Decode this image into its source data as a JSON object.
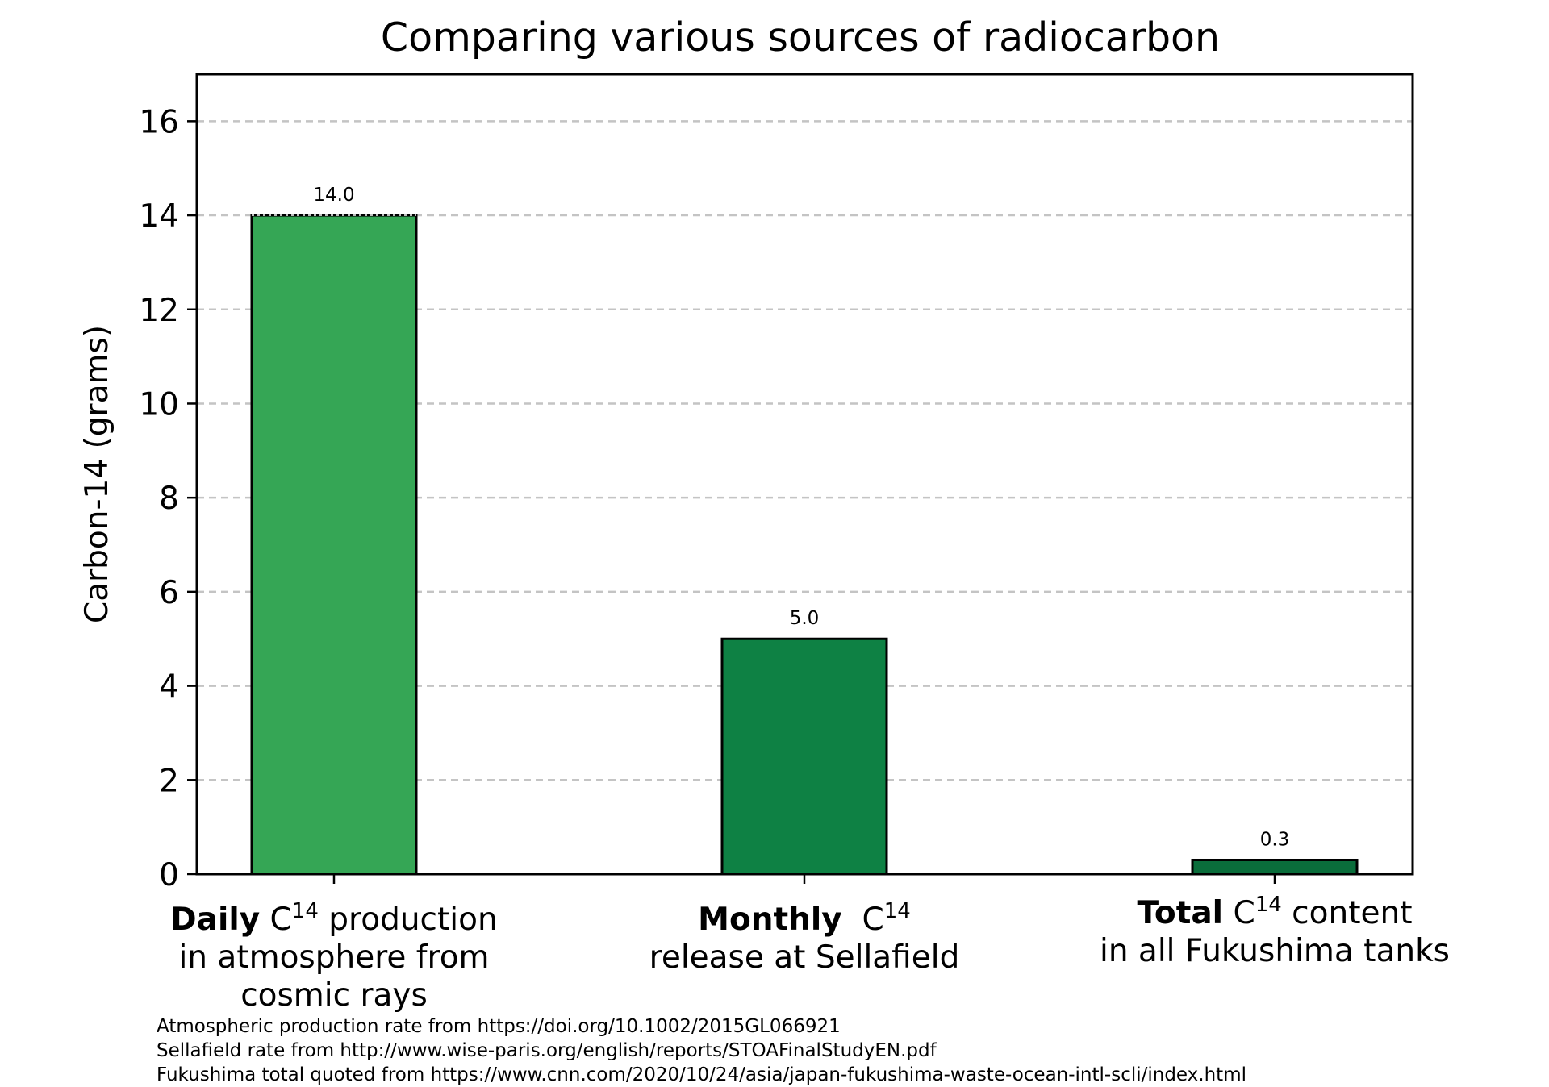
{
  "chart_data": {
    "type": "bar",
    "title": "Comparing various sources of radiocarbon",
    "ylabel": "Carbon-14 (grams)",
    "xlabel": "",
    "ylim": [
      0,
      17
    ],
    "yticks": [
      0,
      2,
      4,
      6,
      8,
      10,
      12,
      14,
      16
    ],
    "grid": "horizontal dashed",
    "categories": [
      {
        "bold": "Daily",
        "pre": " C",
        "sup": "14",
        "post": " production",
        "lines": [
          "in atmosphere from",
          "cosmic rays"
        ]
      },
      {
        "bold": "Monthly",
        "pre": "  C",
        "sup": "14",
        "post": "",
        "lines": [
          "release at Sellafield"
        ]
      },
      {
        "bold": "Total",
        "pre": " C",
        "sup": "14",
        "post": " content",
        "lines": [
          "in all Fukushima tanks"
        ]
      }
    ],
    "values": [
      14.0,
      5.0,
      0.3
    ],
    "value_labels": [
      "14.0",
      "5.0",
      "0.3"
    ],
    "colors": [
      "#35a655",
      "#0e8144",
      "#0a6d3b"
    ]
  },
  "sources": [
    "Atmospheric production rate from https://doi.org/10.1002/2015GL066921",
    "Sellafield rate from http://www.wise-paris.org/english/reports/STOAFinalStudyEN.pdf",
    "Fukushima total quoted from https://www.cnn.com/2020/10/24/asia/japan-fukushima-waste-ocean-intl-scli/index.html"
  ]
}
